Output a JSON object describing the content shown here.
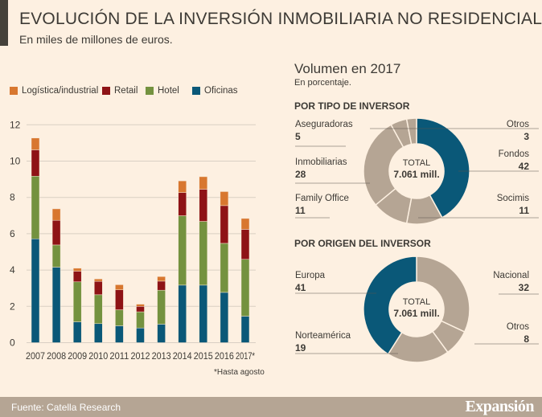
{
  "title": "EVOLUCIÓN DE LA INVERSIÓN INMOBILIARIA NO RESIDENCIAL",
  "subtitle": "En miles de millones de euros.",
  "footer": {
    "source": "Fuente: Catella Research",
    "brand": "Expansión"
  },
  "colors": {
    "background": "#fdf0e1",
    "oficinas": "#0a5878",
    "hotel": "#74923f",
    "retail": "#8e1316",
    "logistica": "#d8772f",
    "other": "#b5a594"
  },
  "chart_data": [
    {
      "type": "bar",
      "stacked": true,
      "categories": [
        "2007",
        "2008",
        "2009",
        "2010",
        "2011",
        "2012",
        "2013",
        "2014",
        "2015",
        "2016",
        "2017*"
      ],
      "ylim": [
        0,
        12
      ],
      "yticks": [
        "0",
        "2",
        "4",
        "6",
        "8",
        "10",
        "12"
      ],
      "grid": true,
      "legend_placement": "top",
      "note": "*Hasta agosto",
      "series": [
        {
          "name": "Oficinas",
          "color": "#0a5878",
          "values": [
            5.72,
            4.16,
            1.15,
            1.05,
            0.93,
            0.81,
            1.02,
            3.17,
            3.17,
            2.77,
            1.46
          ]
        },
        {
          "name": "Hotel",
          "color": "#74923f",
          "values": [
            3.45,
            1.22,
            2.2,
            1.59,
            0.88,
            0.89,
            1.87,
            3.82,
            3.51,
            2.7,
            3.13
          ]
        },
        {
          "name": "Retail",
          "color": "#8e1316",
          "values": [
            1.45,
            1.36,
            0.59,
            0.74,
            1.1,
            0.3,
            0.5,
            1.28,
            1.77,
            2.08,
            1.65
          ]
        },
        {
          "name": "Logística/industrial",
          "color": "#d8772f",
          "values": [
            0.65,
            0.63,
            0.16,
            0.13,
            0.28,
            0.12,
            0.25,
            0.64,
            0.69,
            0.77,
            0.6
          ]
        }
      ],
      "legend_order": [
        3,
        2,
        1,
        0
      ]
    },
    {
      "type": "pie",
      "donut": true,
      "title": "POR TIPO DE INVERSOR",
      "center_label": "TOTAL",
      "center_value": "7.061 mill.",
      "slices": [
        {
          "label": "Fondos",
          "value": 42,
          "color": "#0a5878"
        },
        {
          "label": "Socimis",
          "value": 11,
          "color": "#b5a594"
        },
        {
          "label": "Family Office",
          "value": 11,
          "color": "#b5a594"
        },
        {
          "label": "Inmobiliarias",
          "value": 28,
          "color": "#b5a594"
        },
        {
          "label": "Aseguradoras",
          "value": 5,
          "color": "#b5a594"
        },
        {
          "label": "Otros",
          "value": 3,
          "color": "#b5a594"
        }
      ]
    },
    {
      "type": "pie",
      "donut": true,
      "title": "POR ORIGEN DEL INVERSOR",
      "center_label": "TOTAL",
      "center_value": "7.061 mill.",
      "slices": [
        {
          "label": "Nacional",
          "value": 32,
          "color": "#b5a594"
        },
        {
          "label": "Otros",
          "value": 8,
          "color": "#b5a594"
        },
        {
          "label": "Norteamérica",
          "value": 19,
          "color": "#b5a594"
        },
        {
          "label": "Europa",
          "value": 41,
          "color": "#0a5878"
        }
      ]
    }
  ],
  "right_panel": {
    "title": "Volumen en 2017",
    "subtitle": "En porcentaje."
  }
}
